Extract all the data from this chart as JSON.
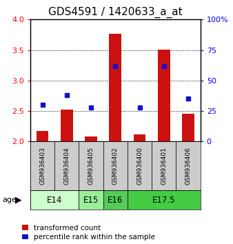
{
  "title": "GDS4591 / 1420633_a_at",
  "samples": [
    "GSM936403",
    "GSM936404",
    "GSM936405",
    "GSM936402",
    "GSM936400",
    "GSM936401",
    "GSM936406"
  ],
  "transformed_count": [
    2.17,
    2.52,
    2.08,
    3.77,
    2.12,
    3.51,
    2.45
  ],
  "percentile_rank": [
    30,
    38,
    28,
    62,
    28,
    62,
    35
  ],
  "ylim_left": [
    2,
    4
  ],
  "ylim_right": [
    0,
    100
  ],
  "yticks_left": [
    2,
    2.5,
    3,
    3.5,
    4
  ],
  "yticks_right": [
    0,
    25,
    50,
    75,
    100
  ],
  "age_groups": [
    {
      "label": "E14",
      "start": 0,
      "end": 2,
      "color": "#ccffcc"
    },
    {
      "label": "E15",
      "start": 2,
      "end": 3,
      "color": "#99ee99"
    },
    {
      "label": "E16",
      "start": 3,
      "end": 4,
      "color": "#55cc55"
    },
    {
      "label": "E17.5",
      "start": 4,
      "end": 7,
      "color": "#44cc44"
    }
  ],
  "bar_color": "#cc1111",
  "dot_color": "#1111cc",
  "bar_width": 0.5,
  "title_fontsize": 11,
  "tick_fontsize": 8,
  "sample_fontsize": 6.5,
  "age_label_fontsize": 8.5,
  "legend_fontsize": 7.5,
  "base_value": 2.0,
  "sample_area_color": "#cccccc"
}
